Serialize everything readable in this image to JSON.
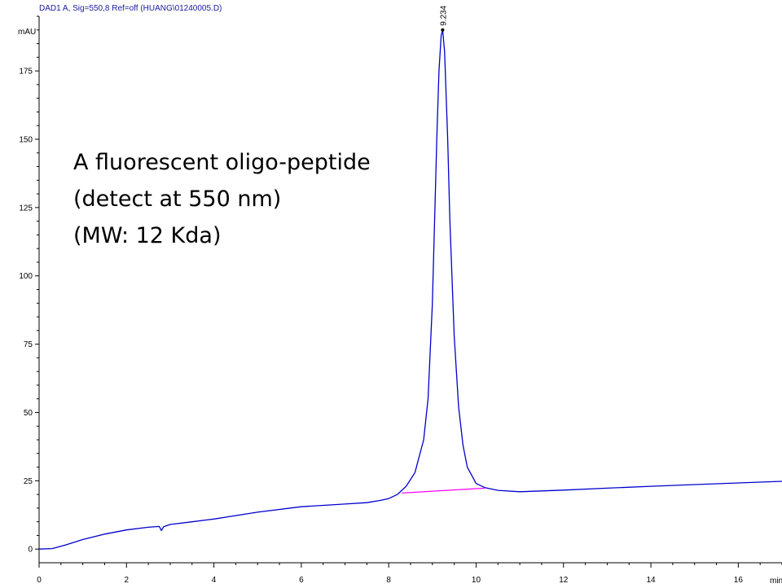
{
  "chart_data": {
    "type": "line",
    "title": "DAD1 A, Sig=550,8 Ref=off (HUANG\\01240005.D)",
    "ylabel": "mAU",
    "xlabel": "min",
    "xlim": [
      0,
      17
    ],
    "ylim": [
      -5,
      195
    ],
    "x_ticks": [
      0,
      2,
      4,
      6,
      8,
      10,
      12,
      14,
      16
    ],
    "y_ticks": [
      0,
      25,
      50,
      75,
      100,
      125,
      150,
      175
    ],
    "annotation_lines": [
      "A fluorescent  oligo-peptide",
      "(detect at 550 nm)",
      "(MW: 12 Kda)"
    ],
    "peak_label": "9.234",
    "series": [
      {
        "color": "#0000cc",
        "x": [
          0,
          0.3,
          0.6,
          1,
          1.5,
          2,
          2.5,
          2.75,
          2.8,
          2.85,
          3,
          3.5,
          4,
          5,
          6,
          7,
          7.5,
          7.8,
          8,
          8.2,
          8.4,
          8.6,
          8.8,
          8.9,
          9.0,
          9.1,
          9.15,
          9.2,
          9.234,
          9.28,
          9.35,
          9.4,
          9.5,
          9.6,
          9.7,
          9.8,
          10.0,
          10.2,
          10.5,
          11,
          11.5,
          12,
          13,
          14,
          15,
          16,
          17
        ],
        "y": [
          0,
          0.2,
          1.5,
          3.5,
          5.5,
          7,
          8,
          8.3,
          6.8,
          8.2,
          9,
          10,
          11,
          13.5,
          15.5,
          16.5,
          17,
          17.8,
          18.5,
          20,
          23,
          28,
          40,
          55,
          90,
          150,
          175,
          188,
          190,
          182,
          150,
          120,
          78,
          52,
          38,
          30,
          24,
          22.5,
          21.5,
          21,
          21.3,
          21.6,
          22.3,
          23,
          23.6,
          24.2,
          24.8
        ]
      },
      {
        "color": "#ff00ff",
        "x": [
          8.3,
          10.2
        ],
        "y": [
          20.5,
          22.3
        ]
      }
    ]
  }
}
